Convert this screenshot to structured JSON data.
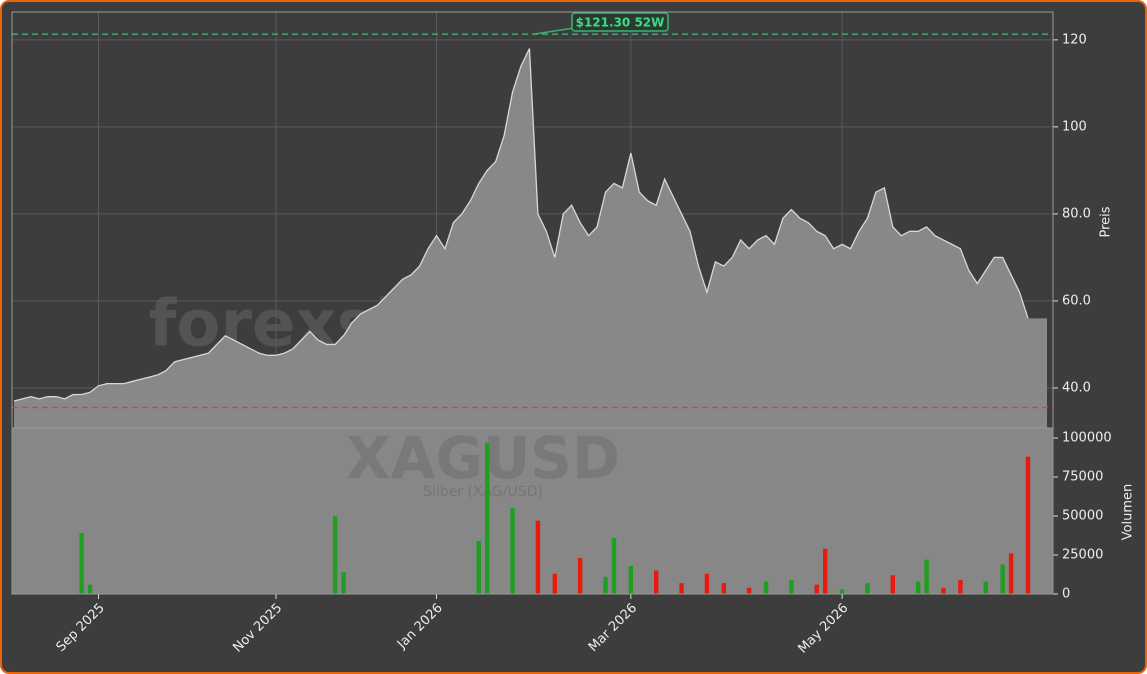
{
  "chart_data": [
    {
      "type": "area",
      "watermark": "forexsignale.trade",
      "y_label": "Preis",
      "color": "#888888",
      "line_color": "#d8d8d8",
      "values": [
        37,
        37.5,
        38,
        37.5,
        38,
        38,
        37.5,
        38.5,
        38.5,
        39,
        40.5,
        41,
        41,
        41,
        41.5,
        42,
        42.5,
        43,
        44,
        46,
        46.5,
        47,
        47.5,
        48,
        50,
        52,
        51,
        50,
        49,
        48,
        47.5,
        47.5,
        48,
        49,
        51,
        53,
        51,
        50,
        50,
        52,
        55,
        57,
        58,
        59,
        61,
        63,
        65,
        66,
        68,
        72,
        75,
        72,
        78,
        80,
        83,
        87,
        90,
        92,
        98,
        108,
        114,
        118,
        80,
        76,
        70,
        80,
        82,
        78,
        75,
        77,
        85,
        87,
        86,
        94,
        85,
        83,
        82,
        88,
        84,
        80,
        76,
        68,
        62,
        69,
        68,
        70,
        74,
        72,
        74,
        75,
        73,
        79,
        81,
        79,
        78,
        76,
        75,
        72,
        73,
        72,
        76,
        79,
        85,
        86,
        77,
        75,
        76,
        76,
        77,
        75,
        74,
        73,
        72,
        67,
        64,
        67,
        70,
        70,
        66,
        62,
        56
      ],
      "reference_lines": [
        {
          "value": 121.3,
          "color": "#3cb371",
          "label": "$121.30 52W"
        },
        {
          "value": 35.5,
          "color": "#e03c3c"
        }
      ],
      "ylim": [
        30.8,
        126.4
      ],
      "yticks": [
        {
          "value": 40,
          "label": "40.0"
        },
        {
          "value": 60,
          "label": "60.0"
        },
        {
          "value": 80,
          "label": "80.0"
        },
        100,
        120
      ],
      "grid": true
    },
    {
      "type": "bar",
      "watermark_title": "XAGUSD",
      "watermark_subtitle": "Silber (XAG/USD)",
      "y_label": "Volumen",
      "up_color": "#1f9e1f",
      "down_color": "#e8190f",
      "categories": [
        null,
        null,
        null,
        null,
        null,
        null,
        null,
        null,
        null,
        null,
        "Sep 2025",
        null,
        null,
        null,
        null,
        null,
        null,
        null,
        null,
        null,
        null,
        null,
        null,
        null,
        null,
        null,
        null,
        null,
        null,
        null,
        null,
        "Nov 2025",
        null,
        null,
        null,
        null,
        null,
        null,
        null,
        null,
        null,
        null,
        null,
        null,
        null,
        null,
        null,
        null,
        null,
        null,
        "Jan 2026",
        null,
        null,
        null,
        null,
        null,
        null,
        null,
        null,
        null,
        null,
        null,
        null,
        null,
        null,
        null,
        null,
        null,
        null,
        null,
        null,
        null,
        null,
        "Mar 2026",
        null,
        null,
        null,
        null,
        null,
        null,
        null,
        null,
        null,
        null,
        null,
        null,
        null,
        null,
        null,
        null,
        null,
        null,
        null,
        null,
        null,
        null,
        null,
        null,
        "May 2026",
        null,
        null,
        null,
        null,
        null,
        null,
        null,
        null,
        null,
        null,
        null,
        null,
        null,
        null,
        null,
        null,
        null,
        null,
        null,
        null,
        null,
        null
      ],
      "values": [
        0,
        0,
        0,
        0,
        0,
        0,
        0,
        0,
        39000,
        6000,
        0,
        0,
        0,
        0,
        0,
        0,
        0,
        0,
        0,
        0,
        0,
        0,
        0,
        0,
        0,
        0,
        0,
        0,
        0,
        0,
        0,
        0,
        0,
        0,
        0,
        0,
        0,
        0,
        50000,
        14000,
        0,
        0,
        0,
        0,
        0,
        0,
        0,
        0,
        0,
        0,
        0,
        0,
        0,
        0,
        0,
        34000,
        97000,
        0,
        0,
        55000,
        0,
        0,
        47000,
        0,
        13000,
        0,
        0,
        23000,
        0,
        0,
        11000,
        36000,
        0,
        18000,
        0,
        0,
        15000,
        0,
        0,
        7000,
        0,
        0,
        13000,
        0,
        7000,
        0,
        0,
        4000,
        0,
        8000,
        0,
        0,
        9000,
        0,
        0,
        6000,
        29000,
        0,
        3000,
        0,
        0,
        7000,
        0,
        0,
        12000,
        0,
        0,
        8000,
        22000,
        0,
        4000,
        0,
        9000,
        0,
        0,
        8000,
        0,
        19000,
        26000,
        0,
        88000
      ],
      "ylim": [
        0,
        106400
      ],
      "yticks": [
        0,
        25000,
        50000,
        75000,
        100000
      ]
    }
  ]
}
